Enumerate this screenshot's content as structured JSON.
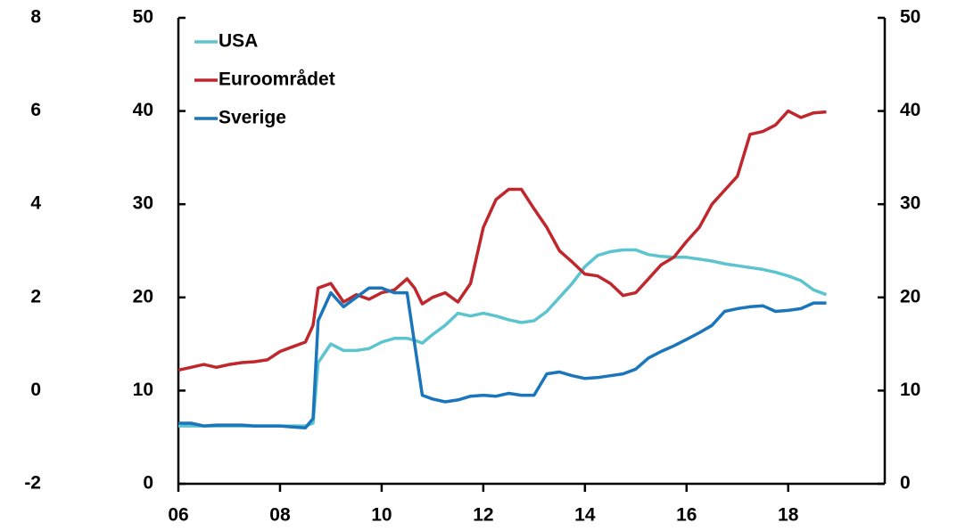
{
  "chart_data": {
    "type": "line",
    "x": [
      2006,
      2006.25,
      2006.5,
      2006.75,
      2007,
      2007.25,
      2007.5,
      2007.75,
      2008,
      2008.25,
      2008.5,
      2008.65,
      2008.75,
      2009,
      2009.25,
      2009.5,
      2009.75,
      2010,
      2010.25,
      2010.5,
      2010.65,
      2010.8,
      2011,
      2011.25,
      2011.5,
      2011.75,
      2012,
      2012.25,
      2012.5,
      2012.75,
      2013,
      2013.25,
      2013.5,
      2013.75,
      2014,
      2014.25,
      2014.5,
      2014.75,
      2015,
      2015.25,
      2015.5,
      2015.75,
      2016,
      2016.25,
      2016.5,
      2016.75,
      2017,
      2017.25,
      2017.5,
      2017.75,
      2018,
      2018.25,
      2018.5,
      2018.75
    ],
    "series": [
      {
        "name": "USA",
        "color": "#5bc4cf",
        "values": [
          6.2,
          6.2,
          6.2,
          6.2,
          6.2,
          6.2,
          6.2,
          6.2,
          6.2,
          6.2,
          6.2,
          6.5,
          13,
          15,
          14.3,
          14.3,
          14.5,
          15.2,
          15.6,
          15.6,
          15.4,
          15.1,
          16,
          17,
          18.3,
          18,
          18.3,
          18,
          17.6,
          17.3,
          17.5,
          18.5,
          20,
          21.5,
          23.3,
          24.5,
          24.9,
          25.1,
          25.1,
          24.6,
          24.4,
          24.3,
          24.3,
          24.1,
          23.9,
          23.6,
          23.4,
          23.2,
          23.0,
          22.7,
          22.3,
          21.8,
          20.8,
          20.3
        ]
      },
      {
        "name": "Euroområdet",
        "color": "#c0272d",
        "values": [
          12.2,
          12.5,
          12.8,
          12.5,
          12.8,
          13,
          13.1,
          13.3,
          14.2,
          14.7,
          15.2,
          17,
          21,
          21.5,
          19.5,
          20.3,
          19.8,
          20.5,
          20.8,
          22,
          21,
          19.3,
          20,
          20.5,
          19.5,
          21.5,
          27.5,
          30.5,
          31.6,
          31.6,
          29.5,
          27.5,
          25,
          23.8,
          22.5,
          22.3,
          21.5,
          20.2,
          20.5,
          22,
          23.5,
          24.3,
          26,
          27.5,
          30,
          31.5,
          33,
          37.5,
          37.8,
          38.5,
          40,
          39.3,
          39.8,
          39.9
        ]
      },
      {
        "name": "Sverige",
        "color": "#1a75bb",
        "values": [
          6.5,
          6.5,
          6.2,
          6.3,
          6.3,
          6.3,
          6.2,
          6.2,
          6.2,
          6.1,
          6.0,
          7,
          17.5,
          20.5,
          19,
          20,
          21,
          21,
          20.5,
          20.5,
          15,
          9.5,
          9.1,
          8.8,
          9.0,
          9.4,
          9.5,
          9.4,
          9.7,
          9.5,
          9.5,
          11.8,
          12,
          11.6,
          11.3,
          11.4,
          11.6,
          11.8,
          12.3,
          13.5,
          14.2,
          14.8,
          15.5,
          16.2,
          17,
          18.5,
          18.8,
          19,
          19.1,
          18.5,
          18.6,
          18.8,
          19.4,
          19.4
        ]
      }
    ],
    "xlim": [
      2006,
      2019.9
    ],
    "xticks": [
      {
        "value": 2006,
        "label": "06"
      },
      {
        "value": 2008,
        "label": "08"
      },
      {
        "value": 2010,
        "label": "10"
      },
      {
        "value": 2012,
        "label": "12"
      },
      {
        "value": 2014,
        "label": "14"
      },
      {
        "value": 2016,
        "label": "16"
      },
      {
        "value": 2018,
        "label": "18"
      }
    ],
    "ylim": [
      0,
      50
    ],
    "yticks": [
      0,
      10,
      20,
      30,
      40,
      50
    ],
    "y2lim": [
      0,
      50
    ],
    "y2ticks": [
      0,
      10,
      20,
      30,
      40,
      50
    ],
    "y3lim": [
      -2,
      8
    ],
    "y3ticks": [
      -2,
      0,
      2,
      4,
      6,
      8
    ],
    "legend": "upper left"
  }
}
